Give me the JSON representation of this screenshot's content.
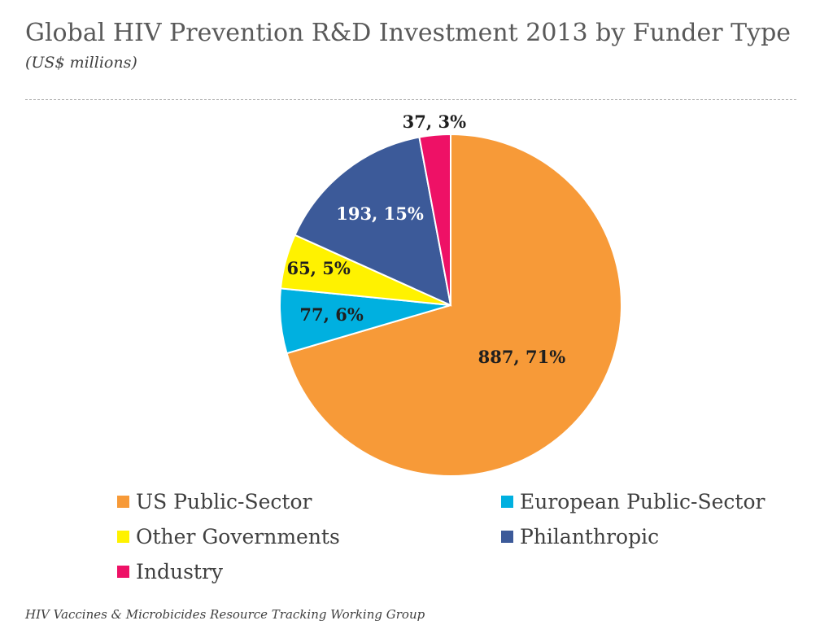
{
  "header": {
    "title": "Global HIV Prevention R&D Investment 2013 by Funder Type",
    "subtitle": "(US$ millions)"
  },
  "footer": {
    "source": "HIV Vaccines & Microbicides Resource Tracking Working Group"
  },
  "chart_data": {
    "type": "pie",
    "title": "Global HIV Prevention R&D Investment 2013 by Funder Type",
    "subtitle": "(US$ millions)",
    "legend_position": "bottom",
    "slices": [
      {
        "name": "US Public-Sector",
        "value": 887,
        "percent": 71,
        "label": "887, 71%",
        "color": "#f79a38",
        "label_color": "#1f1f1f"
      },
      {
        "name": "European Public-Sector",
        "value": 77,
        "percent": 6,
        "label": "77, 6%",
        "color": "#00b0e0",
        "label_color": "#1f1f1f"
      },
      {
        "name": "Other Governments",
        "value": 65,
        "percent": 5,
        "label": "65, 5%",
        "color": "#fff200",
        "label_color": "#1f1f1f"
      },
      {
        "name": "Philanthropic",
        "value": 193,
        "percent": 15,
        "label": "193, 15%",
        "color": "#3c5a99",
        "label_color": "#ffffff"
      },
      {
        "name": "Industry",
        "value": 37,
        "percent": 3,
        "label": "37, 3%",
        "color": "#ee1166",
        "label_color": "#1f1f1f"
      }
    ]
  },
  "legend": {
    "items": [
      {
        "label": "US Public-Sector",
        "color": "#f79a38"
      },
      {
        "label": "European Public-Sector",
        "color": "#00b0e0"
      },
      {
        "label": "Other Governments",
        "color": "#fff200"
      },
      {
        "label": "Philanthropic",
        "color": "#3c5a99"
      },
      {
        "label": "Industry",
        "color": "#ee1166"
      }
    ]
  }
}
